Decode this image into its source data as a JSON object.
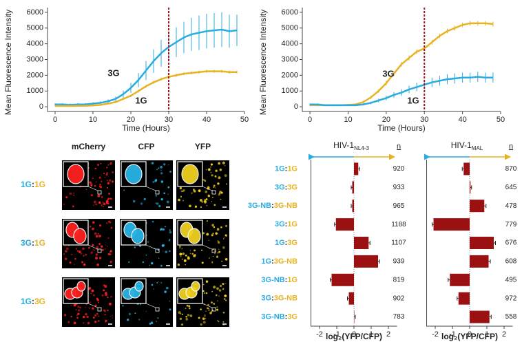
{
  "chart_data": [
    {
      "type": "line",
      "xlabel": "Time (Hours)",
      "ylabel": "Mean Fluorescence Intensity",
      "xlim": [
        -2,
        50
      ],
      "xticks": [
        0,
        10,
        20,
        30,
        40,
        50
      ],
      "ylim": [
        -300,
        6300
      ],
      "yticks": [
        0,
        1000,
        2000,
        3000,
        4000,
        5000,
        6000
      ],
      "vline": 30,
      "x": [
        0,
        2,
        4,
        6,
        8,
        10,
        12,
        14,
        16,
        18,
        20,
        22,
        24,
        26,
        28,
        30,
        32,
        34,
        36,
        38,
        40,
        42,
        44,
        46,
        48
      ],
      "series": [
        {
          "name": "3G",
          "color": "#29abe2",
          "values": [
            150,
            150,
            120,
            150,
            150,
            200,
            250,
            350,
            500,
            800,
            1200,
            1700,
            2300,
            2900,
            3400,
            3800,
            4100,
            4400,
            4600,
            4700,
            4800,
            4850,
            4900,
            4800,
            4850
          ],
          "errors": [
            80,
            80,
            80,
            80,
            80,
            90,
            100,
            120,
            150,
            220,
            320,
            450,
            600,
            750,
            850,
            900,
            950,
            1000,
            1050,
            1100,
            1100,
            1100,
            1100,
            1050,
            1000
          ]
        },
        {
          "name": "1G",
          "color": "#e8b222",
          "values": [
            50,
            50,
            50,
            60,
            60,
            80,
            120,
            200,
            300,
            500,
            700,
            1000,
            1300,
            1550,
            1750,
            1900,
            2000,
            2100,
            2150,
            2200,
            2250,
            2250,
            2250,
            2200,
            2200
          ],
          "errors": [
            30,
            30,
            30,
            30,
            30,
            30,
            40,
            50,
            60,
            70,
            80,
            90,
            100,
            100,
            100,
            100,
            100,
            100,
            100,
            100,
            100,
            100,
            100,
            100,
            100
          ]
        }
      ]
    },
    {
      "type": "line",
      "xlabel": "Time (Hours)",
      "ylabel": "Mean Fluorescence Intensity",
      "xlim": [
        -2,
        50
      ],
      "xticks": [
        0,
        10,
        20,
        30,
        40,
        50
      ],
      "ylim": [
        -300,
        6300
      ],
      "yticks": [
        0,
        1000,
        2000,
        3000,
        4000,
        5000,
        6000
      ],
      "vline": 30,
      "x": [
        0,
        2,
        4,
        6,
        8,
        10,
        12,
        14,
        16,
        18,
        20,
        22,
        24,
        26,
        28,
        30,
        32,
        34,
        36,
        38,
        40,
        42,
        44,
        46,
        48
      ],
      "series": [
        {
          "name": "3G",
          "color": "#e8b222",
          "values": [
            100,
            100,
            100,
            100,
            100,
            120,
            150,
            300,
            600,
            1000,
            1500,
            2100,
            2700,
            3100,
            3500,
            3700,
            4100,
            4500,
            4800,
            5000,
            5200,
            5300,
            5300,
            5300,
            5250
          ],
          "errors": [
            60,
            60,
            60,
            60,
            60,
            60,
            70,
            80,
            100,
            120,
            150,
            150,
            150,
            150,
            150,
            150,
            150,
            150,
            150,
            150,
            150,
            150,
            150,
            150,
            150
          ]
        },
        {
          "name": "1G",
          "color": "#29abe2",
          "values": [
            150,
            150,
            100,
            100,
            100,
            100,
            100,
            150,
            250,
            400,
            550,
            750,
            900,
            1100,
            1250,
            1400,
            1550,
            1650,
            1750,
            1800,
            1850,
            1850,
            1900,
            1850,
            1850
          ],
          "errors": [
            60,
            60,
            60,
            60,
            60,
            60,
            60,
            70,
            90,
            120,
            150,
            180,
            210,
            240,
            270,
            290,
            300,
            310,
            320,
            320,
            320,
            320,
            320,
            320,
            320
          ]
        }
      ]
    },
    {
      "type": "barh",
      "title": "HIV-1",
      "title_subscript": "NL4-3",
      "n_label": "n",
      "xlabel": "log₂(YFP/CFP)",
      "color": "#9b1010",
      "xlim": [
        -2.5,
        2.5
      ],
      "xticks": [
        -2,
        -1,
        0,
        1,
        2
      ],
      "categories": [
        "1G:1G",
        "3G:3G",
        "3G-NB:3G-NB",
        "3G:1G",
        "1G:3G",
        "1G:3G-NB",
        "3G-NB:1G",
        "3G:3G-NB",
        "3G-NB:3G"
      ],
      "values": [
        0.25,
        -0.1,
        -0.1,
        -1.05,
        0.85,
        1.4,
        -1.3,
        -0.3,
        0.02
      ],
      "errors": [
        0.08,
        0.06,
        0.06,
        0.08,
        0.08,
        0.08,
        0.08,
        0.08,
        0.06
      ],
      "n_values": [
        920,
        933,
        965,
        1188,
        1107,
        939,
        819,
        902,
        783
      ]
    },
    {
      "type": "barh",
      "title": "HIV-1",
      "title_subscript": "MAL",
      "n_label": "n",
      "xlabel": "log₂(YFP/CFP)",
      "color": "#9b1010",
      "xlim": [
        -2.5,
        2.5
      ],
      "xticks": [
        -2,
        -1,
        0,
        1,
        2
      ],
      "categories": [
        "1G:1G",
        "3G:3G",
        "3G-NB:3G-NB",
        "3G:1G",
        "1G:3G",
        "1G:3G-NB",
        "3G-NB:1G",
        "3G:3G-NB",
        "3G-NB:3G"
      ],
      "values": [
        -0.35,
        0.05,
        0.85,
        -2.1,
        1.4,
        1.1,
        -1.15,
        -0.65,
        1.15
      ],
      "errors": [
        0.08,
        0.06,
        0.1,
        0.08,
        0.1,
        0.1,
        0.1,
        0.08,
        0.1
      ],
      "n_values": [
        870,
        645,
        478,
        779,
        676,
        608,
        495,
        972,
        558
      ]
    }
  ],
  "microscopy": {
    "columns": [
      "mCherry",
      "CFP",
      "YFP"
    ],
    "rows": [
      "1G:1G",
      "3G:1G",
      "1G:3G"
    ]
  }
}
